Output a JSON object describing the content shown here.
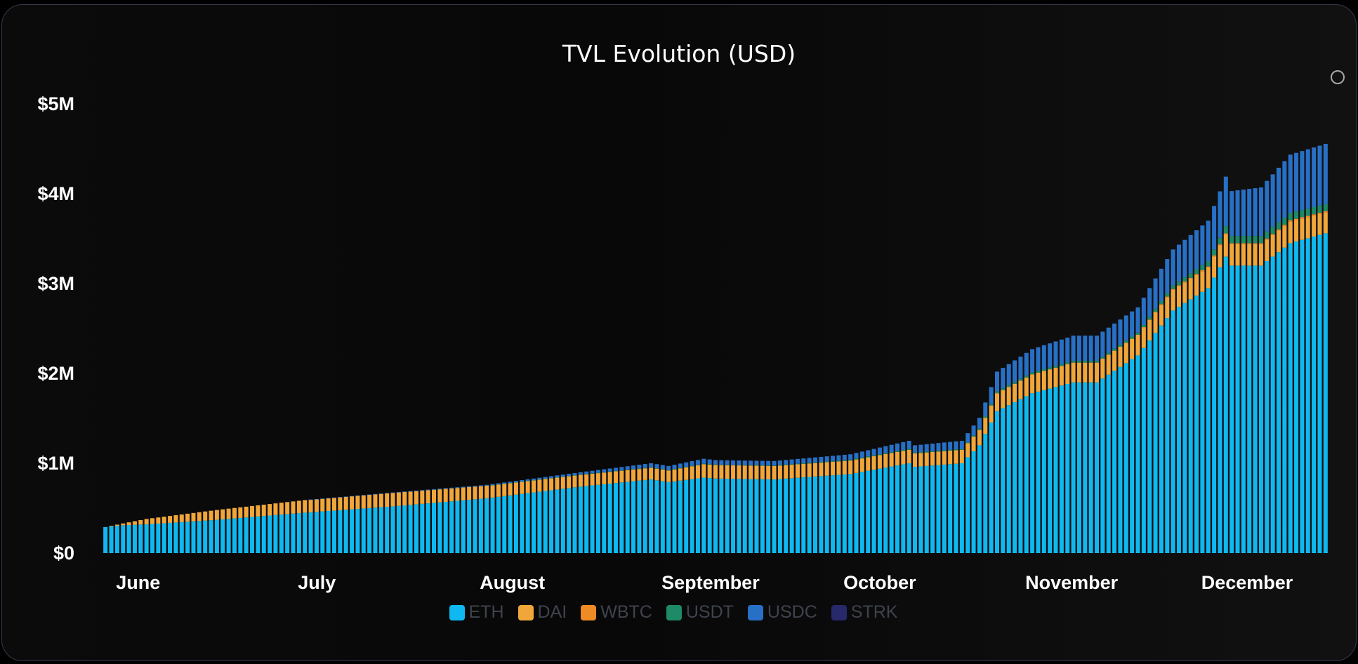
{
  "chart_data": {
    "type": "bar",
    "stacked": true,
    "title": "TVL Evolution (USD)",
    "xlabel": "",
    "ylabel": "",
    "ylim": [
      0,
      5000000
    ],
    "y_ticks": [
      {
        "value": 0,
        "label": "$0"
      },
      {
        "value": 1000000,
        "label": "$1M"
      },
      {
        "value": 2000000,
        "label": "$2M"
      },
      {
        "value": 3000000,
        "label": "$3M"
      },
      {
        "value": 4000000,
        "label": "$4M"
      },
      {
        "value": 5000000,
        "label": "$5M"
      }
    ],
    "x_labels": [
      {
        "day": 4,
        "label": "June"
      },
      {
        "day": 35,
        "label": "July"
      },
      {
        "day": 66,
        "label": "August"
      },
      {
        "day": 97,
        "label": "September"
      },
      {
        "day": 128,
        "label": "October"
      },
      {
        "day": 159,
        "label": "November"
      },
      {
        "day": 189,
        "label": "December"
      }
    ],
    "legend_position": "bottom",
    "grid": false,
    "series": [
      {
        "name": "ETH",
        "color": "#0fb8f0"
      },
      {
        "name": "DAI",
        "color": "#f0a63a"
      },
      {
        "name": "WBTC",
        "color": "#f08a24"
      },
      {
        "name": "USDT",
        "color": "#1e8a68"
      },
      {
        "name": "USDC",
        "color": "#2770c6"
      },
      {
        "name": "STRK",
        "color": "#27296b"
      }
    ],
    "anchors": [
      {
        "day": 1,
        "ETH": 290000,
        "DAI": 0,
        "WBTC": 0,
        "USDT": 0,
        "USDC": 0,
        "STRK": 0
      },
      {
        "day": 4,
        "ETH": 310000,
        "DAI": 20000,
        "WBTC": 0,
        "USDT": 0,
        "USDC": 0,
        "STRK": 0
      },
      {
        "day": 8,
        "ETH": 320000,
        "DAI": 60000,
        "WBTC": 0,
        "USDT": 0,
        "USDC": 0,
        "STRK": 0
      },
      {
        "day": 20,
        "ETH": 370000,
        "DAI": 110000,
        "WBTC": 0,
        "USDT": 0,
        "USDC": 0,
        "STRK": 0
      },
      {
        "day": 35,
        "ETH": 450000,
        "DAI": 140000,
        "WBTC": 0,
        "USDT": 0,
        "USDC": 0,
        "STRK": 0
      },
      {
        "day": 50,
        "ETH": 520000,
        "DAI": 150000,
        "WBTC": 0,
        "USDT": 0,
        "USDC": 5000,
        "STRK": 0
      },
      {
        "day": 66,
        "ETH": 610000,
        "DAI": 140000,
        "WBTC": 0,
        "USDT": 0,
        "USDC": 10000,
        "STRK": 0
      },
      {
        "day": 82,
        "ETH": 740000,
        "DAI": 130000,
        "WBTC": 0,
        "USDT": 5000,
        "USDC": 25000,
        "STRK": 0
      },
      {
        "day": 94,
        "ETH": 820000,
        "DAI": 130000,
        "WBTC": 0,
        "USDT": 5000,
        "USDC": 45000,
        "STRK": 0
      },
      {
        "day": 97,
        "ETH": 790000,
        "DAI": 130000,
        "WBTC": 0,
        "USDT": 5000,
        "USDC": 45000,
        "STRK": 0
      },
      {
        "day": 103,
        "ETH": 840000,
        "DAI": 150000,
        "WBTC": 0,
        "USDT": 5000,
        "USDC": 55000,
        "STRK": 0
      },
      {
        "day": 105,
        "ETH": 830000,
        "DAI": 150000,
        "WBTC": 0,
        "USDT": 5000,
        "USDC": 50000,
        "STRK": 0
      },
      {
        "day": 115,
        "ETH": 820000,
        "DAI": 150000,
        "WBTC": 0,
        "USDT": 5000,
        "USDC": 50000,
        "STRK": 0
      },
      {
        "day": 128,
        "ETH": 880000,
        "DAI": 150000,
        "WBTC": 0,
        "USDT": 10000,
        "USDC": 60000,
        "STRK": 0
      },
      {
        "day": 138,
        "ETH": 1000000,
        "DAI": 150000,
        "WBTC": 0,
        "USDT": 10000,
        "USDC": 90000,
        "STRK": 0
      },
      {
        "day": 139,
        "ETH": 960000,
        "DAI": 150000,
        "WBTC": 0,
        "USDT": 10000,
        "USDC": 80000,
        "STRK": 0
      },
      {
        "day": 147,
        "ETH": 1000000,
        "DAI": 150000,
        "WBTC": 0,
        "USDT": 10000,
        "USDC": 90000,
        "STRK": 0
      },
      {
        "day": 150,
        "ETH": 1200000,
        "DAI": 170000,
        "WBTC": 0,
        "USDT": 15000,
        "USDC": 120000,
        "STRK": 0
      },
      {
        "day": 153,
        "ETH": 1580000,
        "DAI": 200000,
        "WBTC": 0,
        "USDT": 20000,
        "USDC": 220000,
        "STRK": 0
      },
      {
        "day": 159,
        "ETH": 1780000,
        "DAI": 210000,
        "WBTC": 0,
        "USDT": 20000,
        "USDC": 260000,
        "STRK": 0
      },
      {
        "day": 166,
        "ETH": 1900000,
        "DAI": 220000,
        "WBTC": 0,
        "USDT": 20000,
        "USDC": 280000,
        "STRK": 0
      },
      {
        "day": 170,
        "ETH": 1900000,
        "DAI": 220000,
        "WBTC": 0,
        "USDT": 20000,
        "USDC": 280000,
        "STRK": 0
      },
      {
        "day": 177,
        "ETH": 2200000,
        "DAI": 230000,
        "WBTC": 0,
        "USDT": 25000,
        "USDC": 280000,
        "STRK": 0
      },
      {
        "day": 183,
        "ETH": 2700000,
        "DAI": 230000,
        "WBTC": 10000,
        "USDT": 40000,
        "USDC": 400000,
        "STRK": 0
      },
      {
        "day": 189,
        "ETH": 2950000,
        "DAI": 230000,
        "WBTC": 10000,
        "USDT": 60000,
        "USDC": 450000,
        "STRK": 0
      },
      {
        "day": 192,
        "ETH": 3300000,
        "DAI": 250000,
        "WBTC": 10000,
        "USDT": 80000,
        "USDC": 550000,
        "STRK": 0
      },
      {
        "day": 193,
        "ETH": 3200000,
        "DAI": 240000,
        "WBTC": 10000,
        "USDT": 80000,
        "USDC": 500000,
        "STRK": 0
      },
      {
        "day": 198,
        "ETH": 3200000,
        "DAI": 240000,
        "WBTC": 10000,
        "USDT": 80000,
        "USDC": 540000,
        "STRK": 0
      },
      {
        "day": 203,
        "ETH": 3450000,
        "DAI": 240000,
        "WBTC": 15000,
        "USDT": 80000,
        "USDC": 650000,
        "STRK": 0
      },
      {
        "day": 209,
        "ETH": 3560000,
        "DAI": 230000,
        "WBTC": 15000,
        "USDT": 80000,
        "USDC": 670000,
        "STRK": 0
      }
    ]
  },
  "legend": [
    {
      "name": "ETH",
      "color": "#0fb8f0"
    },
    {
      "name": "DAI",
      "color": "#f0a63a"
    },
    {
      "name": "WBTC",
      "color": "#f08a24"
    },
    {
      "name": "USDT",
      "color": "#1e8a68"
    },
    {
      "name": "USDC",
      "color": "#2770c6"
    },
    {
      "name": "STRK",
      "color": "#27296b"
    }
  ]
}
